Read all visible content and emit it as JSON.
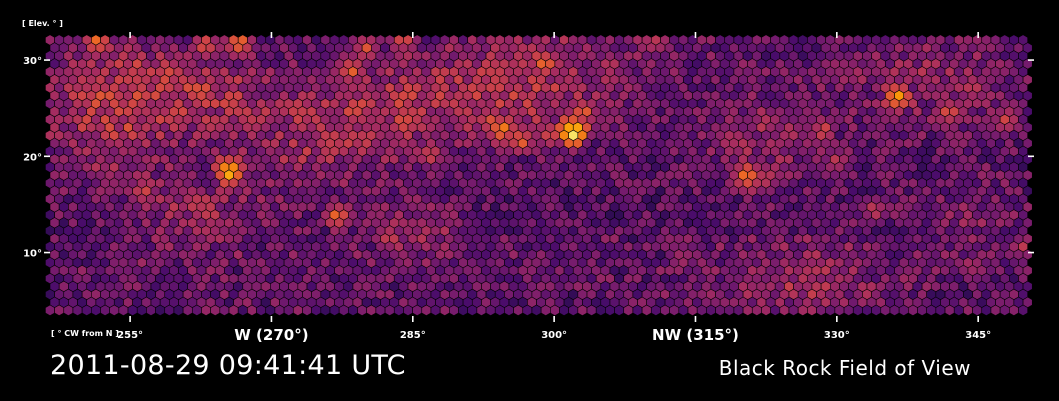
{
  "figure": {
    "timestamp": "2011-08-29 09:41:41 UTC",
    "title": "Black Rock Field of View",
    "background": "#000000",
    "foreground": "#ffffff"
  },
  "chart_data": {
    "type": "heatmap",
    "mark": "hexbin",
    "colormap": "inferno",
    "colormap_stops": [
      "#000004",
      "#1b0c41",
      "#4a0c6b",
      "#781c6d",
      "#a52c60",
      "#cf4446",
      "#ed6925",
      "#fb9b06",
      "#f7d13d",
      "#fcffa4"
    ],
    "xlabel": "[ ° CW from N ]",
    "ylabel": "[ Elev. ° ]",
    "xlim": [
      246.5,
      350.5
    ],
    "ylim": [
      3.2,
      32.5
    ],
    "x_ticks": [
      {
        "value": 255,
        "label": "255°",
        "major": false
      },
      {
        "value": 270,
        "label": "W (270°)",
        "major": true
      },
      {
        "value": 285,
        "label": "285°",
        "major": false
      },
      {
        "value": 300,
        "label": "300°",
        "major": false
      },
      {
        "value": 315,
        "label": "NW (315°)",
        "major": true
      },
      {
        "value": 330,
        "label": "330°",
        "major": false
      },
      {
        "value": 345,
        "label": "345°",
        "major": false
      }
    ],
    "y_ticks": [
      {
        "value": 10,
        "label": "10°"
      },
      {
        "value": 20,
        "label": "20°"
      },
      {
        "value": 30,
        "label": "30°"
      }
    ],
    "grid": false,
    "intensity_range": [
      0,
      1
    ],
    "hotspots": [
      {
        "az": 251.5,
        "el": 32.0,
        "level": 0.72
      },
      {
        "az": 255.5,
        "el": 29.2,
        "level": 0.62
      },
      {
        "az": 256.5,
        "el": 16.4,
        "level": 0.6
      },
      {
        "az": 259.5,
        "el": 28.8,
        "level": 0.6
      },
      {
        "az": 263.0,
        "el": 31.6,
        "level": 0.64
      },
      {
        "az": 265.5,
        "el": 18.4,
        "level": 0.86
      },
      {
        "az": 266.5,
        "el": 31.8,
        "level": 0.72
      },
      {
        "az": 269.0,
        "el": 24.0,
        "level": 0.55
      },
      {
        "az": 276.0,
        "el": 21.0,
        "level": 0.58
      },
      {
        "az": 277.0,
        "el": 13.8,
        "level": 0.68
      },
      {
        "az": 278.5,
        "el": 29.0,
        "level": 0.66
      },
      {
        "az": 280.0,
        "el": 31.2,
        "level": 0.62
      },
      {
        "az": 282.5,
        "el": 11.6,
        "level": 0.58
      },
      {
        "az": 284.0,
        "el": 32.4,
        "level": 0.66
      },
      {
        "az": 287.0,
        "el": 20.2,
        "level": 0.58
      },
      {
        "az": 289.5,
        "el": 25.8,
        "level": 0.58
      },
      {
        "az": 293.0,
        "el": 23.8,
        "level": 0.62
      },
      {
        "az": 294.5,
        "el": 22.8,
        "level": 0.74
      },
      {
        "az": 296.5,
        "el": 21.6,
        "level": 0.66
      },
      {
        "az": 299.0,
        "el": 29.6,
        "level": 0.72
      },
      {
        "az": 299.5,
        "el": 22.2,
        "level": 0.62
      },
      {
        "az": 302.0,
        "el": 22.4,
        "level": 0.98
      },
      {
        "az": 303.0,
        "el": 24.6,
        "level": 0.68
      },
      {
        "az": 306.0,
        "el": 29.5,
        "level": 0.55
      },
      {
        "az": 311.0,
        "el": 32.0,
        "level": 0.55
      },
      {
        "az": 313.5,
        "el": 9.4,
        "level": 0.5
      },
      {
        "az": 320.5,
        "el": 18.0,
        "level": 0.74
      },
      {
        "az": 322.5,
        "el": 17.8,
        "level": 0.58
      },
      {
        "az": 325.0,
        "el": 22.4,
        "level": 0.56
      },
      {
        "az": 328.5,
        "el": 22.6,
        "level": 0.6
      },
      {
        "az": 330.0,
        "el": 19.4,
        "level": 0.54
      },
      {
        "az": 334.0,
        "el": 14.4,
        "level": 0.55
      },
      {
        "az": 336.5,
        "el": 26.2,
        "level": 0.8
      },
      {
        "az": 342.0,
        "el": 24.6,
        "level": 0.64
      },
      {
        "az": 344.5,
        "el": 27.2,
        "level": 0.56
      },
      {
        "az": 348.0,
        "el": 23.8,
        "level": 0.6
      },
      {
        "az": 350.0,
        "el": 10.6,
        "level": 0.52
      }
    ],
    "warm_regions": [
      {
        "az": 253.0,
        "el": 25.0,
        "level": 0.44,
        "spread_az": 7.0,
        "spread_el": 7.0
      },
      {
        "az": 263.0,
        "el": 27.0,
        "level": 0.38,
        "spread_az": 6.0,
        "spread_el": 4.0
      },
      {
        "az": 262.0,
        "el": 14.0,
        "level": 0.34,
        "spread_az": 6.0,
        "spread_el": 4.0
      },
      {
        "az": 274.0,
        "el": 22.0,
        "level": 0.36,
        "spread_az": 8.0,
        "spread_el": 6.0
      },
      {
        "az": 283.0,
        "el": 25.0,
        "level": 0.34,
        "spread_az": 7.0,
        "spread_el": 5.0
      },
      {
        "az": 286.0,
        "el": 12.0,
        "level": 0.34,
        "spread_az": 5.0,
        "spread_el": 3.0
      },
      {
        "az": 296.0,
        "el": 26.5,
        "level": 0.4,
        "spread_az": 10.0,
        "spread_el": 5.0
      },
      {
        "az": 303.0,
        "el": 31.0,
        "level": 0.28,
        "spread_az": 14.0,
        "spread_el": 2.5
      },
      {
        "az": 322.0,
        "el": 22.0,
        "level": 0.32,
        "spread_az": 7.0,
        "spread_el": 5.0
      },
      {
        "az": 327.0,
        "el": 7.0,
        "level": 0.34,
        "spread_az": 8.0,
        "spread_el": 4.0
      },
      {
        "az": 340.0,
        "el": 28.0,
        "level": 0.32,
        "spread_az": 10.0,
        "spread_el": 5.0
      },
      {
        "az": 344.0,
        "el": 14.0,
        "level": 0.28,
        "spread_az": 6.0,
        "spread_el": 4.0
      }
    ]
  }
}
